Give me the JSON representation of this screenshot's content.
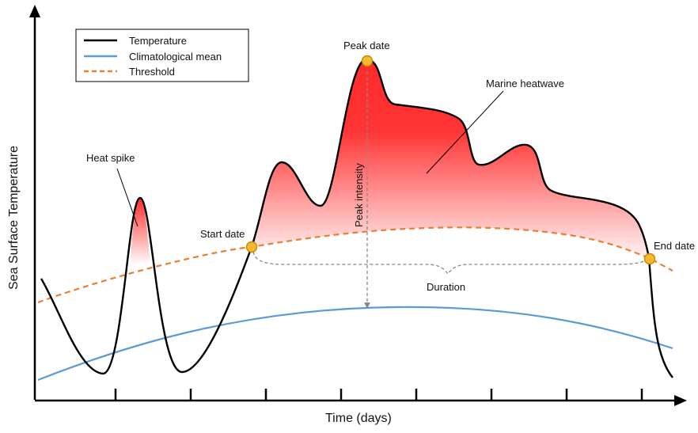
{
  "legend": {
    "items": [
      {
        "label": "Temperature",
        "color": "#000000",
        "style": "solid"
      },
      {
        "label": "Climatological mean",
        "color": "#5b9bd5",
        "style": "solid"
      },
      {
        "label": "Threshold",
        "color": "#ed7d31",
        "style": "dashed"
      }
    ]
  },
  "annotations": {
    "peak_date": "Peak date",
    "marine_heatwave": "Marine heatwave",
    "heat_spike": "Heat spike",
    "start_date": "Start date",
    "end_date": "End date",
    "peak_intensity": "Peak intensity",
    "duration": "Duration"
  },
  "axes": {
    "x_label": "Time (days)",
    "y_label": "Sea Surface Temperature",
    "x_ticks_count": 8
  },
  "colors": {
    "heatwave_fill": "#ff2a2a",
    "marker_fill": "#f5b82e",
    "marker_stroke": "#c48a00",
    "guide_gray": "#888888"
  }
}
